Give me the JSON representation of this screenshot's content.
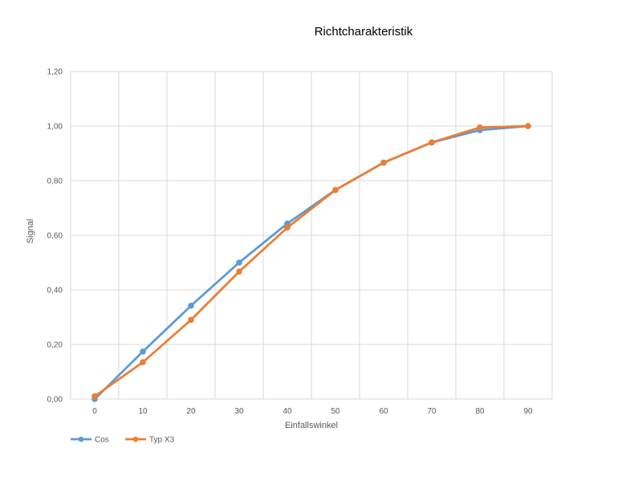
{
  "chart_data": {
    "type": "line",
    "title": "Richtcharakteristik",
    "xlabel": "Einfallswinkel",
    "ylabel": "Signal",
    "categories": [
      "0",
      "10",
      "20",
      "30",
      "40",
      "50",
      "60",
      "70",
      "80",
      "90"
    ],
    "x": [
      0,
      10,
      20,
      30,
      40,
      50,
      60,
      70,
      80,
      90
    ],
    "xlim": [
      -5,
      95
    ],
    "ylim": [
      0,
      1.2
    ],
    "yticks": [
      0,
      0.2,
      0.4,
      0.6,
      0.8,
      1.0,
      1.2
    ],
    "ytick_labels": [
      "0,00",
      "0,20",
      "0,40",
      "0,60",
      "0,80",
      "1,00",
      "1,20"
    ],
    "grid": true,
    "legend_position": "bottom-left",
    "series": [
      {
        "name": "Cos",
        "color": "#5b9bd5",
        "values": [
          0.0,
          0.174,
          0.342,
          0.5,
          0.643,
          0.766,
          0.866,
          0.94,
          0.985,
          1.0
        ]
      },
      {
        "name": "Typ X3",
        "color": "#ed7d31",
        "values": [
          0.01,
          0.135,
          0.29,
          0.467,
          0.628,
          0.766,
          0.866,
          0.94,
          0.995,
          1.0
        ]
      }
    ]
  }
}
